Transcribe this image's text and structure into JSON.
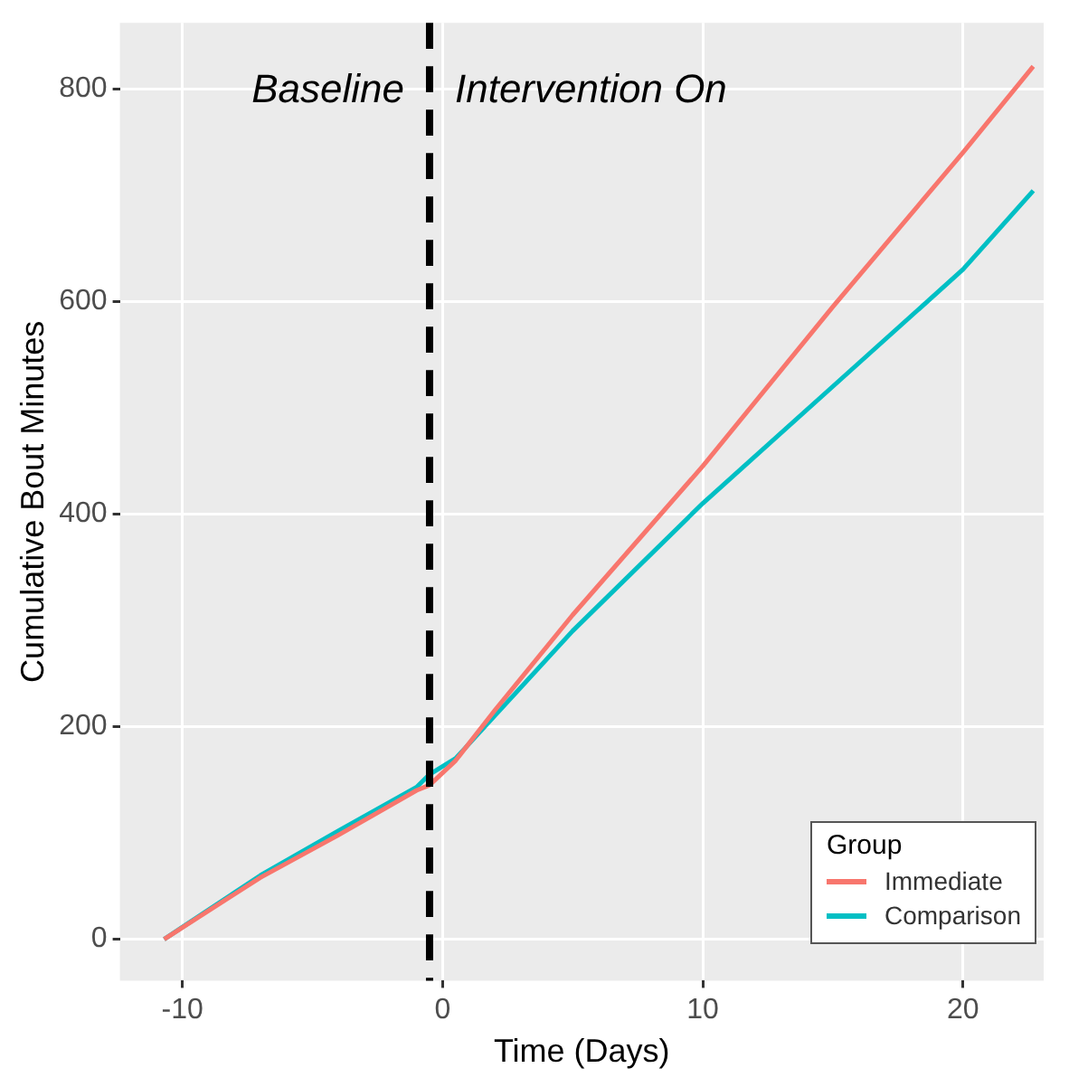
{
  "chart_data": {
    "type": "line",
    "xlabel": "Time (Days)",
    "ylabel": "Cumulative Bout Minutes",
    "xlim": [
      -12.4,
      23.1
    ],
    "xticks": [
      -10,
      0,
      10,
      20
    ],
    "ylim": [
      -39,
      862
    ],
    "yticks": [
      0,
      200,
      400,
      600,
      800
    ],
    "grid": true,
    "legend": "bottom right",
    "legend_title": "Group",
    "line_style": "solid",
    "marker": "none",
    "annotations": [
      "Baseline",
      "Intervention On"
    ],
    "ref_lines": [
      {
        "axis": "x",
        "value": -0.5,
        "color": "#000000",
        "line_style": "dashed"
      }
    ],
    "series": [
      {
        "name": "Immediate",
        "color": "#f8766d",
        "x": [
          -10.7,
          -7,
          -4,
          -1,
          -0.5,
          0.5,
          2,
          5,
          10,
          15,
          20,
          22.7
        ],
        "values": [
          0,
          58,
          98,
          140,
          145,
          168,
          215,
          305,
          445,
          595,
          740,
          821
        ]
      },
      {
        "name": "Comparison",
        "color": "#00bfc4",
        "x": [
          -10.7,
          -7,
          -4,
          -1,
          -0.5,
          0.5,
          2,
          5,
          10,
          15,
          20,
          22.7
        ],
        "values": [
          0,
          60,
          102,
          143,
          155,
          170,
          210,
          290,
          410,
          520,
          630,
          704
        ]
      }
    ]
  }
}
